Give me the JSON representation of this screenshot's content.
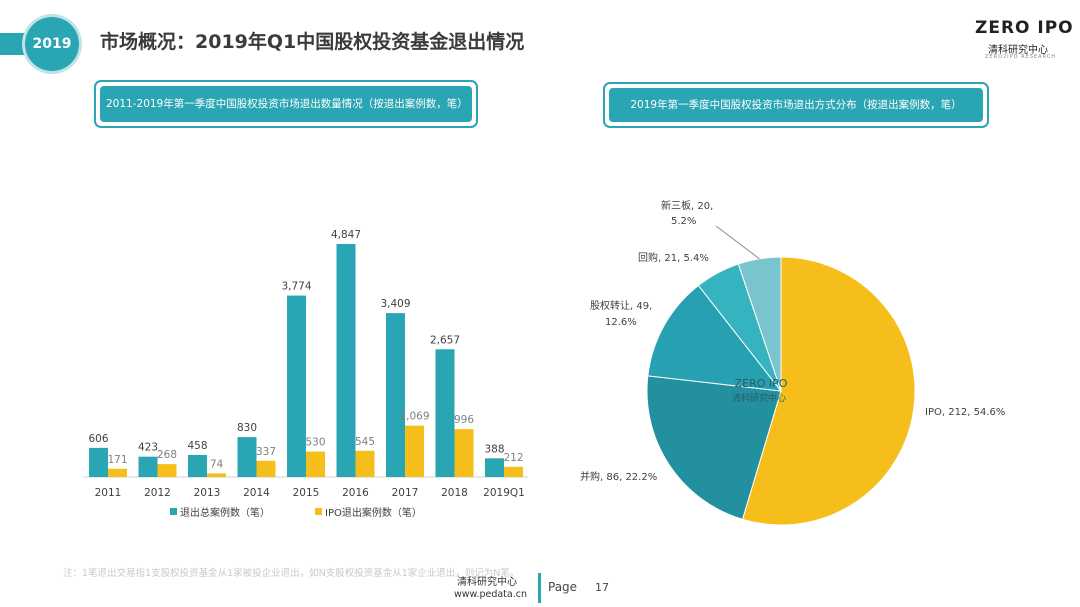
{
  "header": {
    "year_badge": "2019",
    "title": "市场概况：2019年Q1中国股权投资基金退出情况",
    "logo_text": "ZERO IPO",
    "logo_sub": "清科研究中心",
    "logo_tagline": "ZERO2IPO RESEARCH"
  },
  "colors": {
    "teal": "#2aa5b3",
    "yellow": "#f5be1a"
  },
  "chart_data": [
    {
      "type": "bar",
      "title": "2011-2019年第一季度中国股权投资市场退出数量情况（按退出案例数，笔）",
      "categories": [
        "2011",
        "2012",
        "2013",
        "2014",
        "2015",
        "2016",
        "2017",
        "2018",
        "2019Q1"
      ],
      "series": [
        {
          "name": "退出总案例数（笔）",
          "color": "#2aa5b3",
          "values": [
            606,
            423,
            458,
            830,
            3774,
            4847,
            3409,
            2657,
            388
          ]
        },
        {
          "name": "IPO退出案例数（笔）",
          "color": "#f5be1a",
          "values": [
            171,
            268,
            74,
            337,
            530,
            545,
            1069,
            996,
            212
          ]
        }
      ],
      "data_labels": {
        "total": [
          "606",
          "423",
          "458",
          "830",
          "3,774",
          "4,847",
          "3,409",
          "2,657",
          "388"
        ],
        "ipo": [
          "171",
          "268",
          "74",
          "337",
          "530",
          "545",
          "1,069",
          "996",
          "212"
        ]
      },
      "ylim": [
        0,
        5000
      ],
      "legend": "bottom"
    },
    {
      "type": "pie",
      "title": "2019年第一季度中国股权投资市场退出方式分布（按退出案例数，笔）",
      "slices": [
        {
          "label": "IPO",
          "value": 212,
          "percent": "54.6%",
          "color": "#f5be1a",
          "text": "IPO, 212, 54.6%"
        },
        {
          "label": "并购",
          "value": 86,
          "percent": "22.2%",
          "color": "#23909f",
          "text": "并购, 86, 22.2%"
        },
        {
          "label": "股权转让",
          "value": 49,
          "percent": "12.6%",
          "color": "#27a1b1",
          "text": "股权转让, 49, 12.6%"
        },
        {
          "label": "回购",
          "value": 21,
          "percent": "5.4%",
          "color": "#35b4c0",
          "text": "回购, 21, 5.4%"
        },
        {
          "label": "新三板",
          "value": 20,
          "percent": "5.2%",
          "color": "#7ac4cd",
          "text": "新三板, 20, 5.2%"
        }
      ]
    }
  ],
  "footnote": "注：1笔退出交易指1支股权投资基金从1家被投企业退出，如N支股权投资基金从1家企业退出，则记为N笔。",
  "footer": {
    "org": "清科研究中心",
    "url": "www.pedata.cn",
    "page_label": "Page",
    "page_number": "17"
  }
}
